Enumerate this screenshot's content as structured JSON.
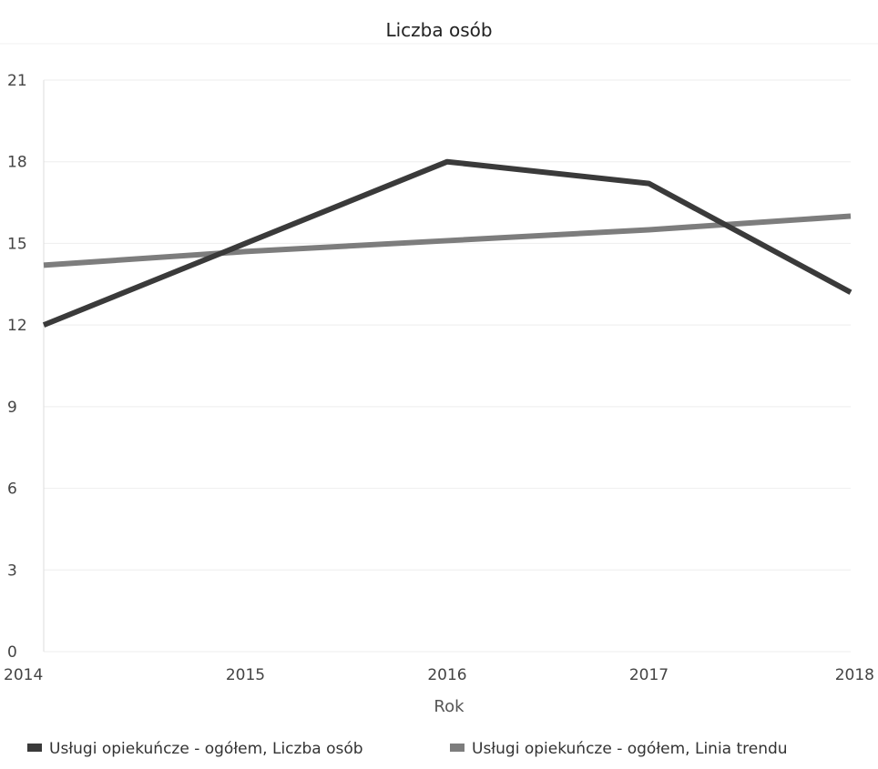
{
  "chart_data": {
    "type": "line",
    "title": "Liczba osób",
    "xlabel": "Rok",
    "ylabel": "",
    "x": [
      "2014",
      "2015",
      "2016",
      "2017",
      "2018"
    ],
    "ylim": [
      0,
      21
    ],
    "yticks": [
      "0",
      "3",
      "6",
      "9",
      "12",
      "15",
      "18",
      "21"
    ],
    "grid": true,
    "legend_position": "bottom",
    "series": [
      {
        "name": "Usługi opiekuńcze - ogółem, Liczba osób",
        "values": [
          12,
          15,
          18,
          17.2,
          13.2
        ],
        "color": "#3a3a3a"
      },
      {
        "name": "Usługi opiekuńcze - ogółem, Linia trendu",
        "values": [
          14.2,
          14.7,
          15.1,
          15.5,
          16
        ],
        "color": "#7d7d7d"
      }
    ]
  }
}
